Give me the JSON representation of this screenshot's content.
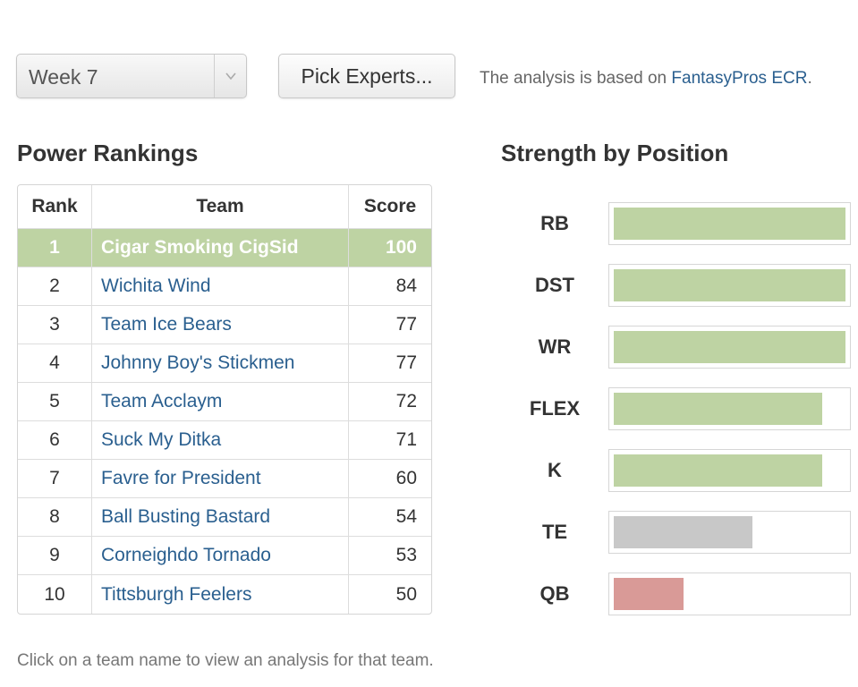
{
  "toolbar": {
    "week_select": {
      "value": "Week 7"
    },
    "pick_experts_label": "Pick Experts...",
    "analysis_prefix": "The analysis is based on ",
    "analysis_link": "FantasyPros ECR",
    "analysis_suffix": "."
  },
  "power_rankings": {
    "title": "Power Rankings",
    "columns": {
      "rank": "Rank",
      "team": "Team",
      "score": "Score"
    },
    "rows": [
      {
        "rank": "1",
        "team": "Cigar Smoking CigSid",
        "score": "100",
        "highlighted": true
      },
      {
        "rank": "2",
        "team": "Wichita Wind",
        "score": "84"
      },
      {
        "rank": "3",
        "team": "Team Ice Bears",
        "score": "77"
      },
      {
        "rank": "4",
        "team": "Johnny Boy's Stickmen",
        "score": "77"
      },
      {
        "rank": "5",
        "team": "Team Acclaym",
        "score": "72"
      },
      {
        "rank": "6",
        "team": "Suck My Ditka",
        "score": "71"
      },
      {
        "rank": "7",
        "team": "Favre for President",
        "score": "60"
      },
      {
        "rank": "8",
        "team": "Ball Busting Bastard",
        "score": "54"
      },
      {
        "rank": "9",
        "team": "Corneighdo Tornado",
        "score": "53"
      },
      {
        "rank": "10",
        "team": "Tittsburgh Feelers",
        "score": "50"
      }
    ]
  },
  "strength_by_position": {
    "title": "Strength by Position",
    "positions": [
      {
        "label": "RB",
        "strength_pct": 100,
        "level": "high"
      },
      {
        "label": "DST",
        "strength_pct": 100,
        "level": "high"
      },
      {
        "label": "WR",
        "strength_pct": 100,
        "level": "high"
      },
      {
        "label": "FLEX",
        "strength_pct": 90,
        "level": "high"
      },
      {
        "label": "K",
        "strength_pct": 90,
        "level": "high"
      },
      {
        "label": "TE",
        "strength_pct": 60,
        "level": "mid"
      },
      {
        "label": "QB",
        "strength_pct": 30,
        "level": "low"
      }
    ],
    "colors": {
      "high": "#bed3a3",
      "mid": "#c8c8c8",
      "low": "#d99a97"
    }
  },
  "footer": {
    "note": "Click on a team name to view an analysis for that team."
  }
}
